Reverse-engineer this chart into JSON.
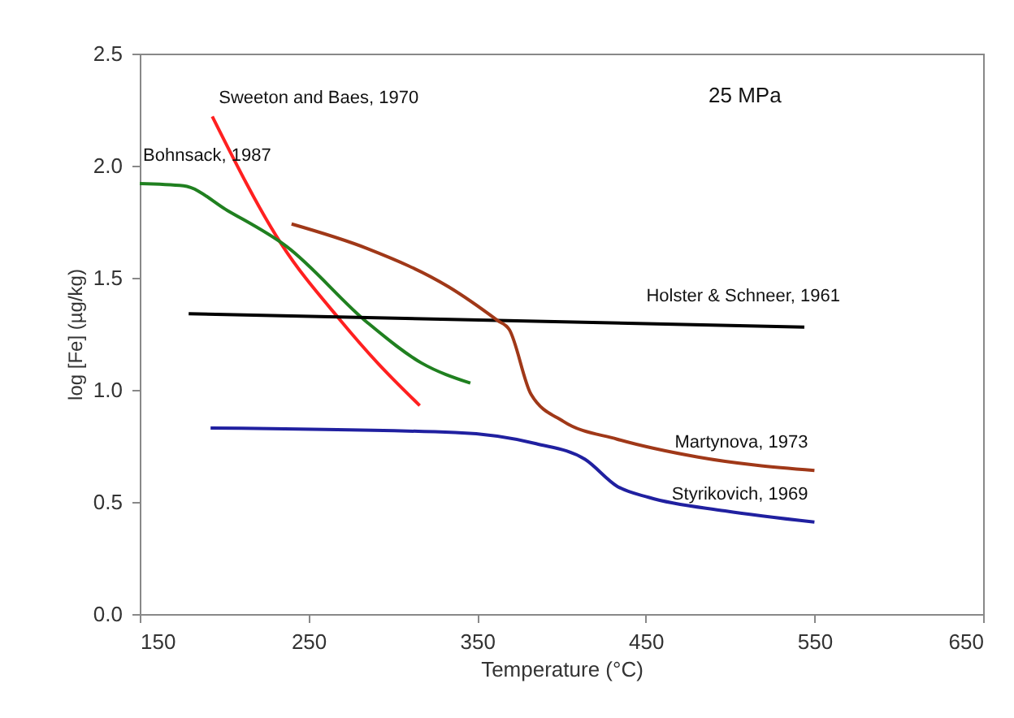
{
  "chart_data": {
    "type": "line",
    "xlabel": "Temperature (°C)",
    "ylabel": "log [Fe] (µg/kg)",
    "xlim": [
      150,
      650
    ],
    "xticks": [
      150,
      250,
      350,
      450,
      550,
      650
    ],
    "ylim": [
      0,
      2.5
    ],
    "yticks": [
      {
        "value": 0,
        "label": "0.0"
      },
      {
        "value": 0.5,
        "label": "0.5"
      },
      {
        "value": 1,
        "label": "1.0"
      },
      {
        "value": 1.5,
        "label": "1.5"
      },
      {
        "value": 2,
        "label": "2.0"
      },
      {
        "value": 2.5,
        "label": "2.5"
      }
    ],
    "grid": false,
    "legend": false,
    "marker": "none",
    "line_style": "solid",
    "annotations": [
      "25 MPa"
    ],
    "series": [
      {
        "name": "Sweeton and Baes, 1970",
        "color": "#ff2020",
        "x": [
          193,
          234,
          269,
          291,
          316
        ],
        "values": [
          2.22,
          1.65,
          1.31,
          1.12,
          0.93
        ]
      },
      {
        "name": "Bohnsack, 1987",
        "color": "#208020",
        "x": [
          150,
          176,
          202,
          237,
          285,
          317,
          346
        ],
        "values": [
          1.92,
          1.91,
          1.8,
          1.64,
          1.3,
          1.12,
          1.03
        ]
      },
      {
        "name": "Holster & Schneer, 1961",
        "color": "#000000",
        "x": [
          179,
          544
        ],
        "values": [
          1.34,
          1.28
        ]
      },
      {
        "name": "Martynova, 1973",
        "color": "#a03818",
        "x": [
          240,
          285,
          333,
          362,
          369,
          382,
          401,
          433,
          481,
          550
        ],
        "values": [
          1.74,
          1.63,
          1.46,
          1.31,
          1.27,
          0.98,
          0.86,
          0.78,
          0.7,
          0.64
        ]
      },
      {
        "name": "Styrikovich, 1969",
        "color": "#2020a0",
        "x": [
          192,
          337,
          385,
          414,
          433,
          452,
          497,
          550
        ],
        "values": [
          0.83,
          0.81,
          0.76,
          0.69,
          0.57,
          0.52,
          0.46,
          0.41
        ]
      }
    ]
  }
}
